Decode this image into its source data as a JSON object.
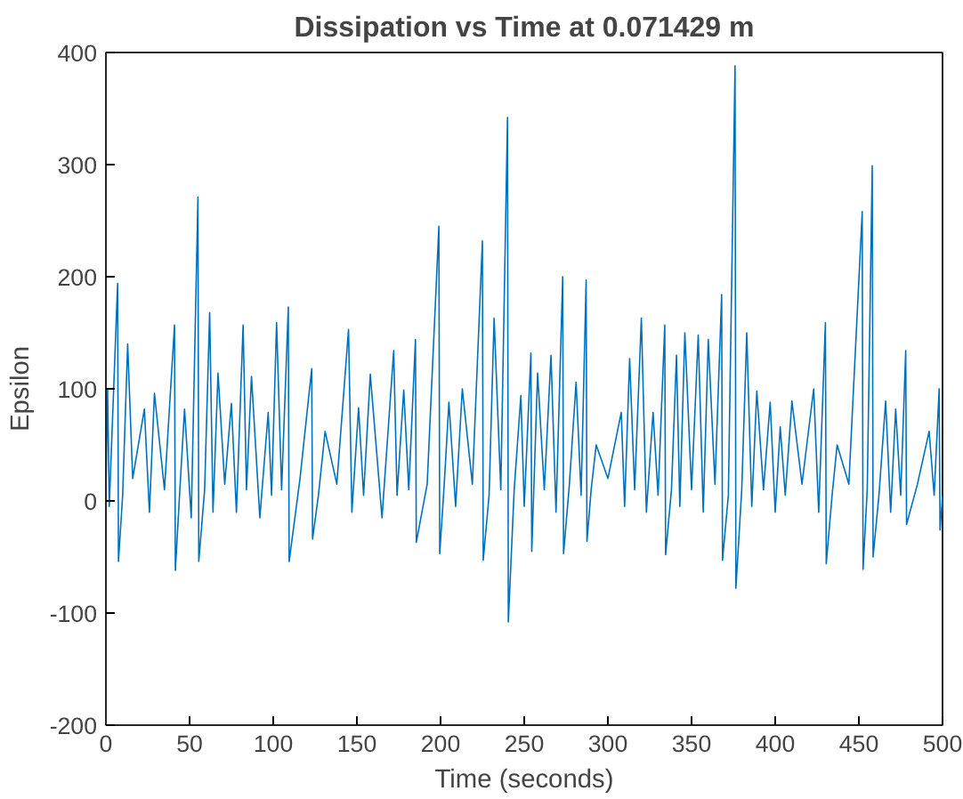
{
  "chart_data": {
    "type": "line",
    "title": "Dissipation vs Time at 0.071429 m",
    "xlabel": "Time (seconds)",
    "ylabel": "Epsilon",
    "xlim": [
      0,
      500
    ],
    "ylim": [
      -200,
      400
    ],
    "xticks": [
      0,
      50,
      100,
      150,
      200,
      250,
      300,
      350,
      400,
      450,
      500
    ],
    "yticks": [
      -200,
      -100,
      0,
      100,
      200,
      300,
      400
    ],
    "grid": false,
    "series": [
      {
        "color": "#0072bd",
        "x": [
          0,
          1,
          2,
          7,
          7.5,
          10,
          13,
          16,
          23,
          26,
          29,
          35,
          41,
          41.5,
          44,
          47,
          51,
          55,
          55.5,
          59,
          62,
          64,
          67,
          71,
          75,
          78,
          82,
          84,
          87,
          92,
          97,
          99,
          102,
          105,
          109,
          109.5,
          116,
          123,
          123.5,
          127,
          131,
          138,
          145,
          147,
          151,
          154,
          158,
          165,
          172,
          174,
          178,
          181,
          185,
          185.5,
          192,
          199,
          199.5,
          202,
          205,
          209,
          213,
          219,
          225,
          225.5,
          229,
          232,
          236,
          240,
          240.5,
          244,
          248,
          250,
          254,
          254.5,
          258,
          262,
          266,
          269,
          273,
          273.5,
          277,
          281,
          284,
          287,
          287.5,
          290,
          293,
          300,
          308,
          310,
          313,
          316,
          320,
          323,
          327,
          330,
          334,
          334.5,
          338,
          341,
          343,
          346,
          350,
          354,
          357,
          360,
          364,
          368,
          368.5,
          372,
          376,
          376.5,
          380,
          383,
          386,
          389,
          393,
          397,
          400,
          403,
          406,
          410,
          416,
          423,
          426,
          430,
          430.5,
          434,
          437,
          444,
          452,
          452.5,
          455,
          458,
          458.5,
          462,
          466,
          469,
          472,
          475,
          478,
          478.5,
          485,
          492,
          495,
          498,
          498.5,
          500
        ],
        "values": [
          10,
          100,
          -5,
          194,
          -54,
          5,
          140,
          20,
          82,
          -10,
          96,
          10,
          157,
          -62,
          5,
          82,
          -15,
          271,
          -54,
          10,
          168,
          -10,
          114,
          15,
          87,
          -10,
          157,
          10,
          111,
          -15,
          79,
          5,
          159,
          10,
          173,
          -54,
          20,
          118,
          -34,
          5,
          62,
          15,
          153,
          -10,
          83,
          5,
          113,
          -15,
          134,
          5,
          99,
          10,
          144,
          -37,
          15,
          245,
          -47,
          10,
          88,
          -5,
          100,
          15,
          232,
          -53,
          5,
          163,
          10,
          342,
          -108,
          10,
          94,
          -5,
          132,
          -45,
          114,
          10,
          130,
          -10,
          200,
          -47,
          15,
          106,
          5,
          197,
          -36,
          10,
          50,
          20,
          79,
          -5,
          127,
          10,
          163,
          -10,
          79,
          5,
          157,
          -48,
          10,
          130,
          -5,
          150,
          10,
          148,
          -10,
          144,
          15,
          184,
          -53,
          5,
          388,
          -78,
          10,
          150,
          -5,
          98,
          10,
          88,
          -10,
          66,
          5,
          89,
          15,
          100,
          -10,
          159,
          -56,
          5,
          50,
          15,
          258,
          -61,
          10,
          299,
          -50,
          5,
          89,
          -10,
          82,
          5,
          134,
          -21,
          15,
          62,
          5,
          100,
          -26,
          5
        ]
      }
    ]
  }
}
